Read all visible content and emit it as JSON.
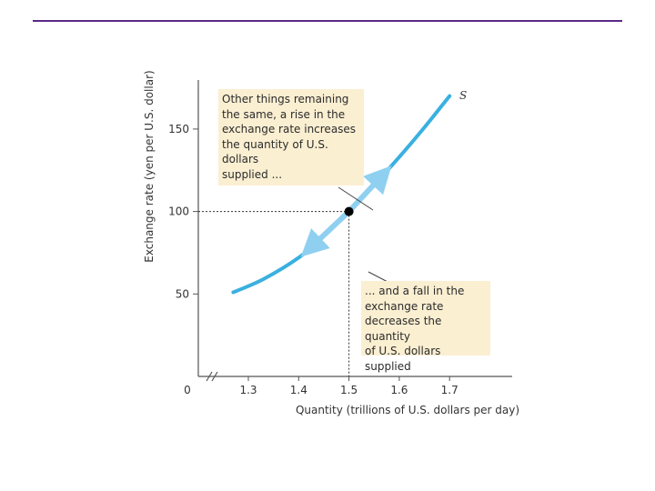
{
  "colors": {
    "rule": "#5a2a86",
    "curve": "#3ab0e0",
    "arrow": "#8fd0f0",
    "annotation_bg": "#fbefd2",
    "axis": "#555555",
    "point": "#000000"
  },
  "chart_data": {
    "type": "line",
    "title": "",
    "xlabel": "Quantity (trillions of U.S. dollars per day)",
    "ylabel": "Exchange rate (yen per U.S. dollar)",
    "xlim": [
      1.2,
      1.8
    ],
    "ylim": [
      0,
      180
    ],
    "axis_break": true,
    "origin_label": "0",
    "x_ticks": [
      {
        "value": 1.3,
        "label": "1.3"
      },
      {
        "value": 1.4,
        "label": "1.4"
      },
      {
        "value": 1.5,
        "label": "1.5"
      },
      {
        "value": 1.6,
        "label": "1.6"
      },
      {
        "value": 1.7,
        "label": "1.7"
      }
    ],
    "y_ticks": [
      {
        "value": 50,
        "label": "50"
      },
      {
        "value": 100,
        "label": "100"
      },
      {
        "value": 150,
        "label": "150"
      }
    ],
    "series": [
      {
        "name": "S",
        "label": "S",
        "x": [
          1.27,
          1.33,
          1.4,
          1.45,
          1.5,
          1.55,
          1.6,
          1.65,
          1.7
        ],
        "y": [
          51,
          59,
          72,
          85,
          100,
          116,
          133,
          151,
          170
        ]
      }
    ],
    "highlight_point": {
      "x": 1.5,
      "y": 100
    },
    "movement_arrows": [
      {
        "from": {
          "x": 1.5,
          "y": 100
        },
        "to": {
          "x": 1.57,
          "y": 123
        }
      },
      {
        "from": {
          "x": 1.5,
          "y": 100
        },
        "to": {
          "x": 1.42,
          "y": 77
        }
      }
    ],
    "annotations": [
      {
        "text": "Other things remaining\nthe same, a rise in the\nexchange rate increases\nthe quantity of U.S. dollars\nsupplied ..."
      },
      {
        "text": "... and a fall in the\nexchange rate\ndecreases the quantity\nof U.S. dollars supplied"
      }
    ]
  }
}
